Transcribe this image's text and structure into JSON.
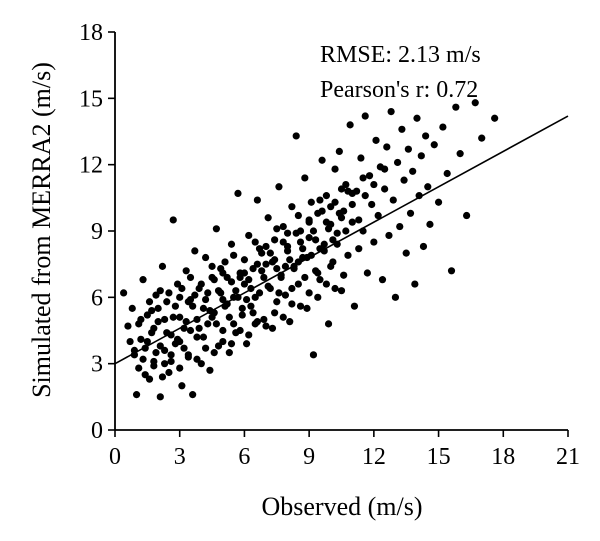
{
  "chart_data": {
    "type": "scatter",
    "title": "",
    "xlabel": "Observed (m/s)",
    "ylabel": "Simulated from MERRA2 (m/s)",
    "xlim": [
      0,
      21
    ],
    "ylim": [
      0,
      18
    ],
    "xticks": [
      "0",
      "3",
      "6",
      "9",
      "12",
      "15",
      "18",
      "21"
    ],
    "yticks": [
      "0",
      "3",
      "6",
      "9",
      "12",
      "15",
      "18"
    ],
    "annotations": [
      "RMSE: 2.13 m/s",
      "Pearson's r: 0.72"
    ],
    "fit_line": {
      "x": [
        0,
        21
      ],
      "y": [
        3.0,
        14.2
      ]
    },
    "marker_color": "#000000",
    "line_color": "#000000",
    "grid": false,
    "legend": "none",
    "points": [
      [
        0.4,
        6.2
      ],
      [
        0.6,
        4.7
      ],
      [
        0.8,
        5.5
      ],
      [
        0.9,
        3.4
      ],
      [
        1.0,
        1.6
      ],
      [
        1.1,
        2.8
      ],
      [
        1.2,
        4.1
      ],
      [
        1.3,
        6.8
      ],
      [
        1.4,
        3.7
      ],
      [
        1.5,
        5.2
      ],
      [
        1.6,
        2.3
      ],
      [
        1.7,
        4.4
      ],
      [
        1.8,
        3.1
      ],
      [
        1.9,
        6.1
      ],
      [
        2.0,
        4.9
      ],
      [
        2.1,
        1.5
      ],
      [
        2.2,
        7.4
      ],
      [
        2.3,
        3.6
      ],
      [
        2.4,
        5.8
      ],
      [
        2.5,
        2.6
      ],
      [
        2.6,
        4.3
      ],
      [
        2.7,
        9.5
      ],
      [
        2.8,
        3.9
      ],
      [
        2.9,
        6.6
      ],
      [
        3.0,
        5.1
      ],
      [
        3.1,
        2.0
      ],
      [
        3.2,
        4.6
      ],
      [
        3.3,
        7.2
      ],
      [
        3.4,
        3.3
      ],
      [
        3.5,
        5.9
      ],
      [
        3.6,
        1.6
      ],
      [
        3.7,
        8.1
      ],
      [
        3.8,
        4.2
      ],
      [
        3.9,
        6.4
      ],
      [
        4.0,
        3.0
      ],
      [
        4.1,
        5.5
      ],
      [
        4.2,
        7.8
      ],
      [
        4.3,
        4.8
      ],
      [
        4.4,
        2.7
      ],
      [
        4.5,
        6.9
      ],
      [
        4.6,
        5.3
      ],
      [
        4.7,
        9.1
      ],
      [
        4.8,
        3.8
      ],
      [
        4.9,
        6.2
      ],
      [
        5.0,
        4.5
      ],
      [
        5.1,
        7.6
      ],
      [
        5.2,
        5.7
      ],
      [
        5.3,
        3.5
      ],
      [
        5.4,
        8.4
      ],
      [
        5.5,
        6.0
      ],
      [
        5.6,
        4.4
      ],
      [
        5.7,
        10.7
      ],
      [
        5.8,
        7.1
      ],
      [
        5.9,
        5.2
      ],
      [
        6.0,
        6.6
      ],
      [
        6.1,
        3.9
      ],
      [
        6.2,
        8.8
      ],
      [
        6.3,
        5.6
      ],
      [
        6.4,
        7.3
      ],
      [
        6.5,
        4.8
      ],
      [
        6.6,
        10.4
      ],
      [
        6.7,
        6.2
      ],
      [
        6.8,
        8.0
      ],
      [
        6.9,
        5.0
      ],
      [
        7.0,
        7.5
      ],
      [
        7.1,
        9.6
      ],
      [
        7.2,
        6.4
      ],
      [
        7.3,
        4.6
      ],
      [
        7.4,
        8.6
      ],
      [
        7.5,
        5.8
      ],
      [
        7.6,
        11.0
      ],
      [
        7.7,
        7.0
      ],
      [
        7.8,
        9.2
      ],
      [
        7.9,
        6.1
      ],
      [
        8.0,
        8.3
      ],
      [
        8.1,
        4.9
      ],
      [
        8.2,
        10.1
      ],
      [
        8.3,
        7.4
      ],
      [
        8.4,
        13.3
      ],
      [
        8.5,
        6.6
      ],
      [
        8.6,
        9.0
      ],
      [
        8.7,
        7.8
      ],
      [
        8.8,
        11.4
      ],
      [
        8.9,
        5.5
      ],
      [
        9.0,
        8.7
      ],
      [
        9.1,
        10.3
      ],
      [
        9.2,
        3.4
      ],
      [
        9.3,
        7.2
      ],
      [
        9.4,
        9.8
      ],
      [
        9.5,
        6.8
      ],
      [
        9.6,
        12.2
      ],
      [
        9.7,
        8.4
      ],
      [
        9.8,
        10.6
      ],
      [
        9.9,
        4.8
      ],
      [
        10.0,
        9.3
      ],
      [
        10.1,
        7.6
      ],
      [
        10.2,
        11.8
      ],
      [
        10.3,
        8.9
      ],
      [
        10.4,
        12.6
      ],
      [
        10.5,
        6.3
      ],
      [
        10.6,
        9.9
      ],
      [
        10.7,
        11.1
      ],
      [
        10.8,
        7.9
      ],
      [
        10.9,
        13.8
      ],
      [
        11.0,
        9.4
      ],
      [
        11.1,
        5.6
      ],
      [
        11.2,
        10.8
      ],
      [
        11.3,
        8.2
      ],
      [
        11.4,
        12.3
      ],
      [
        11.5,
        9.0
      ],
      [
        11.6,
        14.2
      ],
      [
        11.7,
        7.1
      ],
      [
        11.8,
        11.5
      ],
      [
        11.9,
        10.2
      ],
      [
        12.0,
        8.5
      ],
      [
        12.1,
        13.1
      ],
      [
        12.2,
        9.7
      ],
      [
        12.3,
        11.9
      ],
      [
        12.4,
        6.8
      ],
      [
        12.5,
        10.9
      ],
      [
        12.6,
        12.8
      ],
      [
        12.7,
        8.8
      ],
      [
        12.8,
        14.4
      ],
      [
        12.9,
        10.4
      ],
      [
        13.0,
        6.0
      ],
      [
        13.1,
        12.1
      ],
      [
        13.2,
        9.2
      ],
      [
        13.3,
        13.6
      ],
      [
        13.4,
        11.3
      ],
      [
        13.5,
        8.0
      ],
      [
        13.6,
        12.7
      ],
      [
        13.7,
        9.8
      ],
      [
        13.8,
        11.7
      ],
      [
        13.9,
        6.6
      ],
      [
        14.0,
        14.1
      ],
      [
        14.1,
        10.6
      ],
      [
        14.2,
        12.4
      ],
      [
        14.3,
        8.3
      ],
      [
        14.4,
        13.3
      ],
      [
        14.5,
        11.0
      ],
      [
        14.6,
        9.3
      ],
      [
        14.8,
        12.9
      ],
      [
        15.0,
        10.3
      ],
      [
        15.2,
        13.7
      ],
      [
        15.4,
        11.6
      ],
      [
        15.6,
        7.2
      ],
      [
        15.8,
        14.6
      ],
      [
        16.0,
        12.5
      ],
      [
        16.3,
        9.7
      ],
      [
        16.7,
        14.8
      ],
      [
        17.6,
        14.1
      ],
      [
        17.0,
        13.2
      ],
      [
        2.3,
        3.0
      ],
      [
        2.6,
        3.4
      ],
      [
        2.9,
        4.1
      ],
      [
        3.2,
        3.7
      ],
      [
        3.5,
        4.5
      ],
      [
        3.8,
        5.0
      ],
      [
        4.1,
        4.2
      ],
      [
        4.4,
        5.4
      ],
      [
        4.7,
        4.8
      ],
      [
        5.0,
        5.9
      ],
      [
        5.3,
        5.1
      ],
      [
        5.6,
        6.3
      ],
      [
        5.9,
        5.5
      ],
      [
        6.2,
        6.8
      ],
      [
        6.5,
        6.0
      ],
      [
        6.8,
        7.2
      ],
      [
        7.1,
        6.5
      ],
      [
        7.4,
        7.7
      ],
      [
        7.7,
        6.9
      ],
      [
        8.0,
        8.1
      ],
      [
        8.3,
        7.3
      ],
      [
        8.6,
        8.5
      ],
      [
        8.9,
        7.8
      ],
      [
        9.2,
        9.0
      ],
      [
        9.5,
        8.2
      ],
      [
        9.8,
        9.4
      ],
      [
        10.1,
        8.6
      ],
      [
        10.4,
        9.8
      ],
      [
        10.7,
        9.0
      ],
      [
        11.0,
        10.2
      ],
      [
        11.3,
        9.5
      ],
      [
        11.6,
        10.6
      ],
      [
        1.5,
        4.0
      ],
      [
        1.8,
        4.6
      ],
      [
        2.1,
        3.8
      ],
      [
        2.4,
        4.4
      ],
      [
        2.7,
        5.1
      ],
      [
        3.0,
        4.0
      ],
      [
        3.3,
        4.9
      ],
      [
        3.6,
        5.6
      ],
      [
        3.9,
        4.6
      ],
      [
        4.2,
        5.9
      ],
      [
        4.5,
        5.1
      ],
      [
        4.8,
        6.3
      ],
      [
        5.1,
        5.6
      ],
      [
        5.4,
        6.7
      ],
      [
        5.7,
        6.0
      ],
      [
        6.0,
        7.1
      ],
      [
        6.3,
        6.4
      ],
      [
        6.6,
        7.5
      ],
      [
        6.9,
        6.9
      ],
      [
        7.2,
        8.0
      ],
      [
        7.5,
        7.3
      ],
      [
        7.8,
        8.5
      ],
      [
        8.1,
        7.7
      ],
      [
        8.4,
        8.9
      ],
      [
        8.7,
        8.2
      ],
      [
        9.0,
        9.4
      ],
      [
        9.3,
        8.6
      ],
      [
        9.6,
        9.9
      ],
      [
        9.9,
        9.1
      ],
      [
        10.2,
        10.3
      ],
      [
        10.5,
        9.6
      ],
      [
        10.8,
        10.8
      ],
      [
        1.2,
        5.0
      ],
      [
        1.6,
        5.8
      ],
      [
        2.0,
        5.5
      ],
      [
        2.5,
        6.2
      ],
      [
        3.0,
        6.0
      ],
      [
        3.5,
        6.9
      ],
      [
        4.0,
        6.6
      ],
      [
        4.5,
        7.4
      ],
      [
        5.0,
        7.1
      ],
      [
        5.5,
        7.9
      ],
      [
        6.0,
        7.7
      ],
      [
        6.5,
        8.5
      ],
      [
        7.0,
        8.3
      ],
      [
        7.5,
        9.1
      ],
      [
        8.0,
        8.9
      ],
      [
        8.5,
        9.7
      ],
      [
        9.0,
        9.5
      ],
      [
        9.5,
        10.4
      ],
      [
        10.0,
        10.1
      ],
      [
        10.5,
        10.9
      ],
      [
        11.0,
        10.7
      ],
      [
        11.5,
        11.4
      ],
      [
        12.0,
        11.1
      ],
      [
        12.5,
        11.8
      ],
      [
        1.4,
        2.5
      ],
      [
        1.8,
        2.9
      ],
      [
        2.2,
        2.4
      ],
      [
        2.6,
        3.1
      ],
      [
        3.0,
        2.8
      ],
      [
        3.4,
        3.4
      ],
      [
        3.8,
        3.2
      ],
      [
        4.2,
        3.7
      ],
      [
        4.6,
        3.5
      ],
      [
        5.0,
        4.0
      ],
      [
        5.4,
        3.9
      ],
      [
        5.8,
        4.5
      ],
      [
        6.2,
        4.3
      ],
      [
        6.6,
        4.9
      ],
      [
        7.0,
        4.7
      ],
      [
        7.4,
        5.3
      ],
      [
        7.8,
        5.1
      ],
      [
        8.2,
        5.7
      ],
      [
        8.6,
        5.6
      ],
      [
        9.0,
        6.2
      ],
      [
        9.4,
        6.0
      ],
      [
        9.8,
        6.6
      ],
      [
        10.2,
        6.4
      ],
      [
        10.6,
        7.0
      ],
      [
        0.7,
        4.0
      ],
      [
        0.9,
        3.6
      ],
      [
        1.1,
        4.8
      ],
      [
        1.3,
        3.2
      ],
      [
        1.7,
        5.4
      ],
      [
        1.9,
        3.5
      ],
      [
        2.1,
        6.3
      ],
      [
        2.3,
        5.0
      ],
      [
        2.8,
        5.6
      ],
      [
        3.1,
        6.4
      ],
      [
        3.4,
        5.8
      ],
      [
        3.7,
        6.1
      ],
      [
        4.3,
        6.2
      ],
      [
        4.6,
        6.8
      ],
      [
        4.9,
        7.3
      ],
      [
        5.2,
        6.9
      ],
      [
        5.5,
        4.8
      ],
      [
        5.8,
        6.9
      ],
      [
        6.1,
        5.9
      ],
      [
        6.4,
        5.3
      ],
      [
        6.7,
        8.2
      ],
      [
        7.3,
        7.6
      ],
      [
        7.6,
        6.2
      ],
      [
        7.9,
        7.4
      ],
      [
        8.2,
        6.4
      ],
      [
        8.5,
        7.6
      ],
      [
        8.8,
        6.9
      ],
      [
        9.1,
        7.9
      ],
      [
        9.4,
        7.1
      ],
      [
        9.7,
        8.1
      ],
      [
        10.0,
        7.4
      ],
      [
        10.3,
        8.4
      ]
    ]
  }
}
